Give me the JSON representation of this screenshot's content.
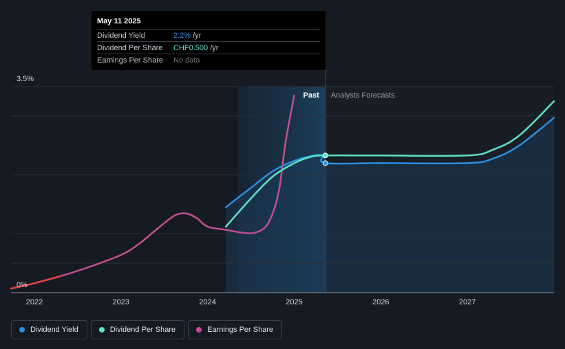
{
  "chart_data": {
    "type": "line",
    "title": "",
    "xlabel": "",
    "ylabel": "",
    "ylim": [
      0,
      3.5
    ],
    "y_tick_labels": [
      {
        "value": 0,
        "label": "0%"
      },
      {
        "value": 3.5,
        "label": "3.5%"
      }
    ],
    "x_ticks": [
      {
        "value": 2022.0,
        "label": "2022"
      },
      {
        "value": 2023.0,
        "label": "2023"
      },
      {
        "value": 2024.0,
        "label": "2024"
      },
      {
        "value": 2025.0,
        "label": "2025"
      },
      {
        "value": 2026.0,
        "label": "2026"
      },
      {
        "value": 2027.0,
        "label": "2027"
      }
    ],
    "xlim": [
      2021.73,
      2028.0
    ],
    "past_start": 2024.35,
    "forecast_start": 2025.36,
    "regions": {
      "past": "Past",
      "forecast": "Analysts Forecasts"
    },
    "series": [
      {
        "name": "Dividend Yield",
        "color": "#2d8ee0",
        "points": [
          [
            2024.21,
            1.45
          ],
          [
            2024.5,
            1.78
          ],
          [
            2024.75,
            2.06
          ],
          [
            2025.0,
            2.24
          ],
          [
            2025.2,
            2.32
          ],
          [
            2025.33,
            2.33
          ],
          [
            2025.36,
            2.2
          ],
          [
            2026.0,
            2.2
          ],
          [
            2027.0,
            2.2
          ],
          [
            2027.3,
            2.28
          ],
          [
            2027.6,
            2.5
          ],
          [
            2028.0,
            2.97
          ]
        ]
      },
      {
        "name": "Dividend Per Share",
        "color": "#5ee3c8",
        "points": [
          [
            2024.21,
            1.12
          ],
          [
            2024.5,
            1.6
          ],
          [
            2024.75,
            1.97
          ],
          [
            2025.0,
            2.2
          ],
          [
            2025.2,
            2.31
          ],
          [
            2025.36,
            2.33
          ],
          [
            2026.0,
            2.33
          ],
          [
            2027.0,
            2.33
          ],
          [
            2027.3,
            2.43
          ],
          [
            2027.6,
            2.67
          ],
          [
            2028.0,
            3.25
          ]
        ]
      },
      {
        "name": "Earnings Per Share",
        "color": "#c0508f",
        "points": [
          [
            2021.73,
            0.07
          ],
          [
            2022.0,
            0.16
          ],
          [
            2022.3,
            0.28
          ],
          [
            2022.6,
            0.42
          ],
          [
            2023.0,
            0.64
          ],
          [
            2023.2,
            0.82
          ],
          [
            2023.4,
            1.06
          ],
          [
            2023.55,
            1.24
          ],
          [
            2023.65,
            1.33
          ],
          [
            2023.77,
            1.34
          ],
          [
            2023.88,
            1.26
          ],
          [
            2024.0,
            1.12
          ],
          [
            2024.2,
            1.07
          ],
          [
            2024.4,
            1.02
          ],
          [
            2024.55,
            1.02
          ],
          [
            2024.7,
            1.18
          ],
          [
            2024.82,
            1.7
          ],
          [
            2024.9,
            2.55
          ],
          [
            2025.0,
            3.35
          ]
        ]
      }
    ]
  },
  "tooltip": {
    "date": "May 11 2025",
    "rows": [
      {
        "name": "Dividend Yield",
        "value": "2.2%",
        "unit": " /yr",
        "color": "#2d8ee0"
      },
      {
        "name": "Dividend Per Share",
        "value": "CHF0.500",
        "unit": " /yr",
        "color": "#5ee3c8"
      },
      {
        "name": "Earnings Per Share",
        "value": "No data",
        "unit": "",
        "color": "#6f747c"
      }
    ]
  },
  "legend": [
    {
      "label": "Dividend Yield",
      "color": "#2d8ee0"
    },
    {
      "label": "Dividend Per Share",
      "color": "#5ee3c8"
    },
    {
      "label": "Earnings Per Share",
      "color": "#c0508f"
    }
  ]
}
